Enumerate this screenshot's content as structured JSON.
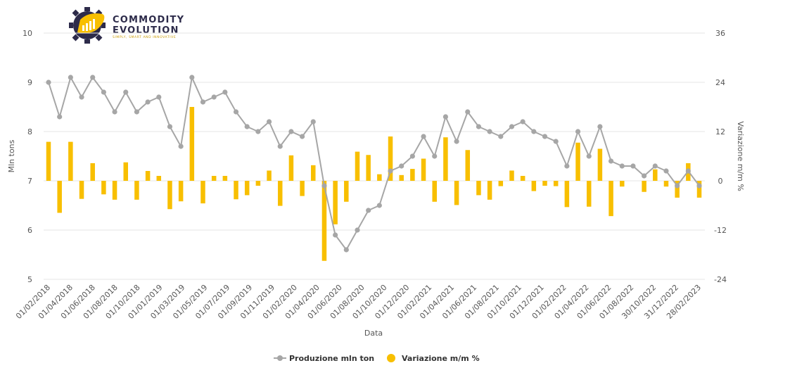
{
  "logo": {
    "line1": "COMMODITY",
    "line2": "EVOLUTION",
    "tagline": "SIMPLY, SMART AND INNOVATIVE"
  },
  "colors": {
    "line": "#a6a6a6",
    "bar": "#f8bf00",
    "grid": "#e6e6e6",
    "logo_dark": "#2d2b4a",
    "logo_accent": "#f8bf00"
  },
  "chart_data": {
    "type": "line+bar",
    "xlabel": "Data",
    "ylabel_left": "Mln tons",
    "ylabel_right": "Variazione m/m %",
    "ylim_left": [
      5,
      10
    ],
    "ylim_right": [
      -24,
      36
    ],
    "yticks_left": [
      5,
      6,
      7,
      8,
      9,
      10
    ],
    "yticks_right": [
      -24,
      -12,
      0,
      12,
      24,
      36
    ],
    "grid": true,
    "legend_position": "bottom-center",
    "x_tick_labels": [
      "01/02/2018",
      "01/04/2018",
      "01/06/2018",
      "01/08/2018",
      "01/10/2018",
      "01/01/2019",
      "01/03/2019",
      "01/05/2019",
      "01/07/2019",
      "01/09/2019",
      "01/11/2019",
      "01/02/2020",
      "01/04/2020",
      "01/06/2020",
      "01/08/2020",
      "01/10/2020",
      "01/12/2020",
      "01/02/2021",
      "01/04/2021",
      "01/06/2021",
      "01/08/2021",
      "01/10/2021",
      "01/12/2021",
      "01/02/2022",
      "01/04/2022",
      "01/06/2022",
      "01/08/2022",
      "30/10/2022",
      "31/12/2022",
      "28/02/2023"
    ],
    "series": [
      {
        "name": "Produzione mln ton",
        "axis": "left",
        "type": "line",
        "values": [
          9.0,
          8.3,
          9.1,
          8.7,
          9.1,
          8.8,
          8.4,
          8.8,
          8.4,
          8.6,
          8.7,
          8.1,
          7.7,
          9.1,
          8.6,
          8.7,
          8.8,
          8.4,
          8.1,
          8.0,
          8.2,
          7.7,
          8.0,
          7.9,
          8.2,
          6.9,
          5.9,
          5.6,
          6.0,
          6.4,
          6.5,
          7.2,
          7.3,
          7.5,
          7.9,
          7.5,
          8.3,
          7.8,
          8.4,
          8.1,
          8.0,
          7.9,
          8.1,
          8.2,
          8.0,
          7.9,
          7.8,
          7.3,
          8.0,
          7.5,
          8.1,
          7.4,
          7.3,
          7.3,
          7.1,
          7.3,
          7.2,
          6.9,
          7.2,
          6.9
        ]
      },
      {
        "name": "Variazione m/m %",
        "axis": "right",
        "type": "bar",
        "values": [
          9.5,
          -7.8,
          9.5,
          -4.4,
          4.3,
          -3.3,
          -4.6,
          4.5,
          -4.6,
          2.4,
          1.2,
          -6.9,
          -5.0,
          18.0,
          -5.5,
          1.2,
          1.2,
          -4.5,
          -3.5,
          -1.2,
          2.5,
          -6.1,
          6.2,
          -3.7,
          3.8,
          -19.5,
          -10.6,
          -5.1,
          7.1,
          6.3,
          1.6,
          10.8,
          1.4,
          2.9,
          5.4,
          -5.1,
          10.6,
          -5.9,
          7.5,
          -3.5,
          -4.6,
          -1.3,
          2.5,
          1.2,
          -2.5,
          -1.2,
          -1.3,
          -6.4,
          9.3,
          -6.3,
          7.8,
          -8.6,
          -1.4,
          0,
          -2.7,
          2.8,
          -1.4,
          -4.1,
          4.3,
          -4.1
        ]
      }
    ]
  }
}
